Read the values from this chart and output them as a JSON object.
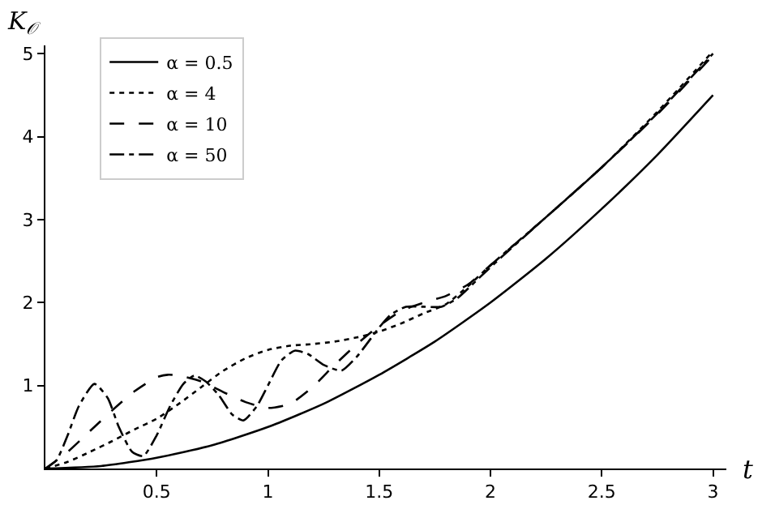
{
  "chart_data": {
    "type": "line",
    "xlabel": "t",
    "ylabel": "K$_{𝒪}$",
    "xlim": [
      0,
      3.06
    ],
    "ylim": [
      0,
      5.1
    ],
    "xticks": [
      0.5,
      1,
      1.5,
      2,
      2.5,
      3
    ],
    "yticks": [
      1,
      2,
      3,
      4,
      5
    ],
    "legend": "top left",
    "marker": "none",
    "series": [
      {
        "name": "α = 0.5",
        "color": "#000000",
        "line_style": "solid",
        "x": [
          0,
          0.25,
          0.5,
          0.75,
          1,
          1.25,
          1.5,
          1.75,
          2,
          2.25,
          2.5,
          2.75,
          3
        ],
        "values": [
          0,
          0.03,
          0.13,
          0.28,
          0.5,
          0.78,
          1.13,
          1.53,
          2.0,
          2.53,
          3.13,
          3.78,
          4.5
        ]
      },
      {
        "name": "α = 4",
        "color": "#000000",
        "line_style": "dotted",
        "x": [
          0,
          0.1,
          0.2,
          0.3,
          0.4,
          0.5,
          0.6,
          0.7,
          0.8,
          0.9,
          1.0,
          1.1,
          1.2,
          1.3,
          1.4,
          1.5,
          1.6,
          1.7,
          1.8,
          1.9,
          2.0,
          2.25,
          2.5,
          2.75,
          3
        ],
        "values": [
          0,
          0.08,
          0.2,
          0.33,
          0.47,
          0.6,
          0.78,
          0.98,
          1.18,
          1.33,
          1.43,
          1.48,
          1.5,
          1.53,
          1.58,
          1.65,
          1.75,
          1.87,
          1.98,
          2.2,
          2.45,
          3.03,
          3.63,
          4.3,
          5.03
        ]
      },
      {
        "name": "α = 10",
        "color": "#000000",
        "line_style": "dashed",
        "x": [
          0,
          0.1,
          0.2,
          0.3,
          0.4,
          0.5,
          0.55,
          0.6,
          0.7,
          0.8,
          0.9,
          1.0,
          1.1,
          1.2,
          1.3,
          1.4,
          1.5,
          1.6,
          1.7,
          1.8,
          1.9,
          2.0,
          2.25,
          2.5,
          2.75,
          3
        ],
        "values": [
          0,
          0.2,
          0.45,
          0.7,
          0.93,
          1.1,
          1.13,
          1.12,
          1.05,
          0.92,
          0.8,
          0.73,
          0.78,
          0.98,
          1.25,
          1.5,
          1.72,
          1.9,
          2.0,
          2.08,
          2.22,
          2.45,
          3.03,
          3.63,
          4.27,
          4.98
        ]
      },
      {
        "name": "α = 50",
        "color": "#000000",
        "line_style": "dashdot",
        "x": [
          0,
          0.05,
          0.1,
          0.15,
          0.22,
          0.28,
          0.33,
          0.39,
          0.44,
          0.5,
          0.56,
          0.62,
          0.67,
          0.72,
          0.78,
          0.84,
          0.89,
          0.95,
          1.0,
          1.06,
          1.12,
          1.18,
          1.25,
          1.33,
          1.4,
          1.5,
          1.55,
          1.62,
          1.7,
          1.78,
          1.85,
          1.95,
          2.05,
          2.25,
          2.5,
          2.75,
          3
        ],
        "values": [
          0,
          0.1,
          0.4,
          0.75,
          1.02,
          0.85,
          0.5,
          0.2,
          0.15,
          0.4,
          0.75,
          1.02,
          1.12,
          1.05,
          0.88,
          0.65,
          0.58,
          0.75,
          1.0,
          1.3,
          1.42,
          1.38,
          1.25,
          1.18,
          1.35,
          1.7,
          1.85,
          1.95,
          1.95,
          1.95,
          2.05,
          2.3,
          2.55,
          3.03,
          3.63,
          4.28,
          5.0
        ]
      }
    ]
  }
}
